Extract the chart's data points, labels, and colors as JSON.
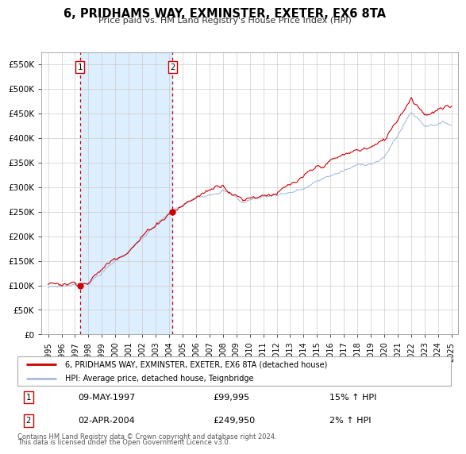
{
  "title": "6, PRIDHAMS WAY, EXMINSTER, EXETER, EX6 8TA",
  "subtitle": "Price paid vs. HM Land Registry's House Price Index (HPI)",
  "background_color": "#ffffff",
  "plot_bg_color": "#ffffff",
  "grid_color": "#cccccc",
  "shade_color": "#ddeeff",
  "hpi_color": "#aabbdd",
  "price_color": "#cc0000",
  "sale1_date_num": 1997.37,
  "sale1_price": 99995,
  "sale2_date_num": 2004.25,
  "sale2_price": 249950,
  "ylim": [
    0,
    575000
  ],
  "xlim_start": 1994.5,
  "xlim_end": 2025.5,
  "ytick_values": [
    0,
    50000,
    100000,
    150000,
    200000,
    250000,
    300000,
    350000,
    400000,
    450000,
    500000,
    550000
  ],
  "ytick_labels": [
    "£0",
    "£50K",
    "£100K",
    "£150K",
    "£200K",
    "£250K",
    "£300K",
    "£350K",
    "£400K",
    "£450K",
    "£500K",
    "£550K"
  ],
  "xtick_years": [
    1995,
    1996,
    1997,
    1998,
    1999,
    2000,
    2001,
    2002,
    2003,
    2004,
    2005,
    2006,
    2007,
    2008,
    2009,
    2010,
    2011,
    2012,
    2013,
    2014,
    2015,
    2016,
    2017,
    2018,
    2019,
    2020,
    2021,
    2022,
    2023,
    2024,
    2025
  ],
  "legend1_label": "6, PRIDHAMS WAY, EXMINSTER, EXETER, EX6 8TA (detached house)",
  "legend2_label": "HPI: Average price, detached house, Teignbridge",
  "table_row1": [
    "1",
    "09-MAY-1997",
    "£99,995",
    "15% ↑ HPI"
  ],
  "table_row2": [
    "2",
    "02-APR-2004",
    "£249,950",
    "2% ↑ HPI"
  ],
  "footer1": "Contains HM Land Registry data © Crown copyright and database right 2024.",
  "footer2": "This data is licensed under the Open Government Licence v3.0."
}
